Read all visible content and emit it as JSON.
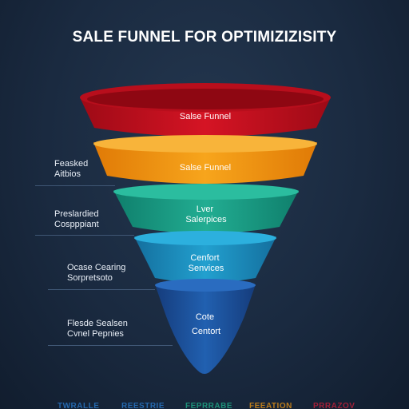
{
  "title": "SALE FUNNEL FOR OPTIMIZIZISITY",
  "stages": [
    {
      "lines": [
        "Salse Funnel"
      ],
      "color": "#c8101e"
    },
    {
      "lines": [
        "Salse Funnel"
      ],
      "color": "#f29a14"
    },
    {
      "lines": [
        "Lver",
        "Salerpices"
      ],
      "color": "#1a9e86"
    },
    {
      "lines": [
        "Cenfort",
        "Senvices"
      ],
      "color": "#1b8fc0"
    },
    {
      "lines": [
        "Cote",
        "Centort"
      ],
      "color": "#1b4f9a"
    }
  ],
  "side_labels": [
    {
      "lines": [
        "Feasked",
        "Aitbios"
      ]
    },
    {
      "lines": [
        "Preslardied",
        "Cospppiant"
      ]
    },
    {
      "lines": [
        "Ocase Cearing",
        "Sorpretsoto"
      ]
    },
    {
      "lines": [
        "Flesde Sealsen",
        "Cvnel Pepnies"
      ]
    }
  ],
  "footer_labels": [
    {
      "text": "TWRALLE",
      "color": "#2a7fd4"
    },
    {
      "text": "REESTRIE",
      "color": "#2a7fd4"
    },
    {
      "text": "FEPRRABE",
      "color": "#1fb58f"
    },
    {
      "text": "FEEATION",
      "color": "#f29a14"
    },
    {
      "text": "PRRAZOV",
      "color": "#d0203a"
    }
  ]
}
